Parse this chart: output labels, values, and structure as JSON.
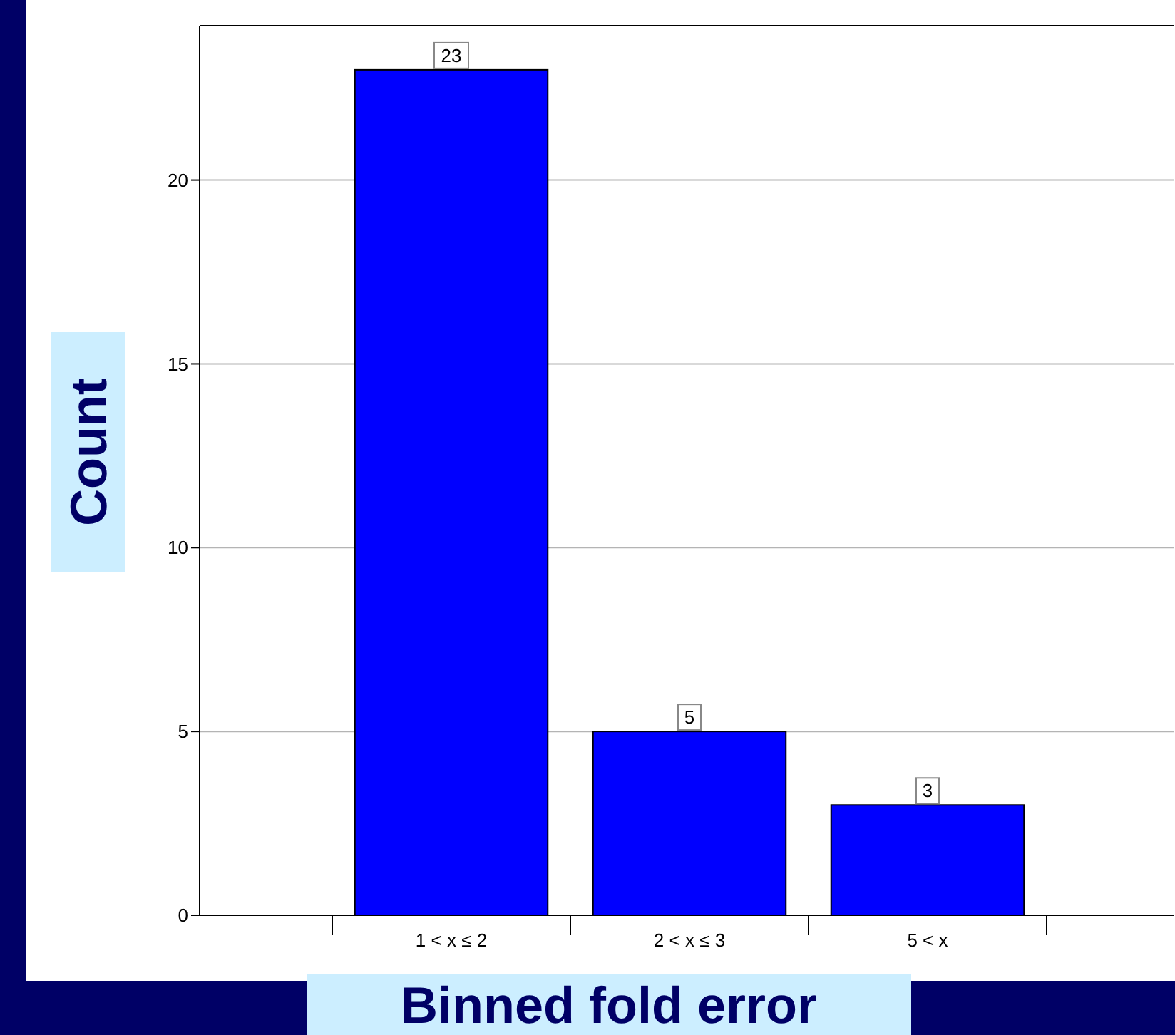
{
  "chart_data": {
    "type": "bar",
    "xlabel": "Binned fold error",
    "ylabel": "Count",
    "categories": [
      "1 < x ≤ 2",
      "2 < x ≤ 3",
      "5 < x"
    ],
    "values": [
      23,
      5,
      3
    ],
    "color": "#0000ff",
    "ylim": [
      0,
      24.2
    ],
    "yticks": [
      0,
      5,
      10,
      15,
      20
    ],
    "grid": "y",
    "data_labels": true
  }
}
